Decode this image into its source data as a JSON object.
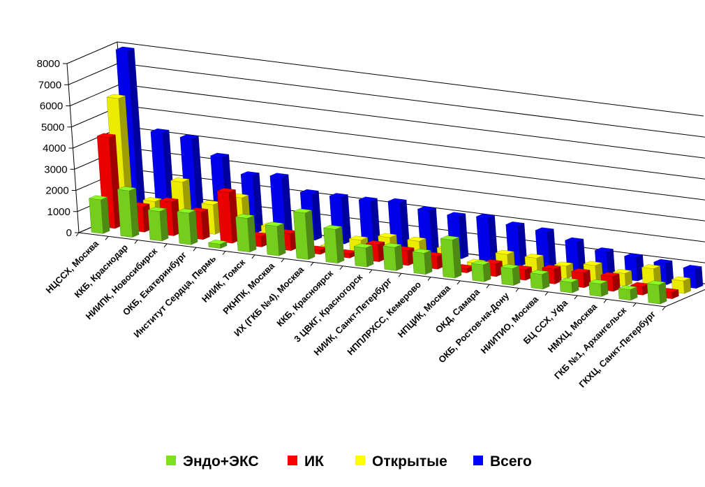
{
  "chart_data": {
    "type": "bar",
    "subtype": "3d-clustered-column",
    "title": "",
    "xlabel": "",
    "ylabel": "",
    "ylim": [
      0,
      8000
    ],
    "yticks": [
      0,
      1000,
      2000,
      3000,
      4000,
      5000,
      6000,
      7000,
      8000
    ],
    "grid": true,
    "legend_position": "bottom",
    "categories": [
      "НЦССХ, Москва",
      "ККБ, Краснодар",
      "НИИПК, Новосибирск",
      "ОКБ, Екатеринбург",
      "Институт Сердца, Пермь",
      "НИИК, Томск",
      "РКНПК, Москва",
      "ИХ (ГКБ №4), Москва",
      "ККБ, Красноярск",
      "3 ЦВКГ, Красногорск",
      "НИИК, Санкт-Петербург",
      "НППЛРХСС, Кемерово",
      "НПЦИК, Москва",
      "ОКД, Самара",
      "ОКБ, Ростов-на-Дону",
      "НИИТИО, Москва",
      "БЦ ССХ, Уфа",
      "НМХЦ, Москва",
      "ГКБ №1, Архангельск",
      "ГКХЦ, Санкт-Петербург"
    ],
    "series": [
      {
        "name": "Эндо+ЭКС",
        "color": "#7FE020",
        "values": [
          1600,
          2200,
          1400,
          1500,
          200,
          1600,
          1400,
          2200,
          1600,
          900,
          1100,
          1000,
          1800,
          800,
          800,
          700,
          500,
          600,
          500,
          900
        ]
      },
      {
        "name": "ИК",
        "color": "#FF0000",
        "values": [
          4300,
          1200,
          1600,
          1300,
          2400,
          500,
          800,
          200,
          200,
          800,
          700,
          600,
          200,
          600,
          500,
          700,
          700,
          700,
          400,
          300
        ]
      },
      {
        "name": "Открытые",
        "color": "#FFFF00",
        "values": [
          5900,
          1200,
          2300,
          1400,
          1900,
          700,
          100,
          100,
          600,
          900,
          900,
          700,
          200,
          800,
          800,
          600,
          800,
          600,
          1000,
          600
        ]
      },
      {
        "name": "Всего",
        "color": "#0000FF",
        "values": [
          7900,
          4200,
          4100,
          3400,
          2700,
          2800,
          2200,
          2200,
          2200,
          2300,
          2100,
          2000,
          2100,
          1900,
          1800,
          1500,
          1200,
          1100,
          1000,
          900
        ]
      }
    ]
  }
}
